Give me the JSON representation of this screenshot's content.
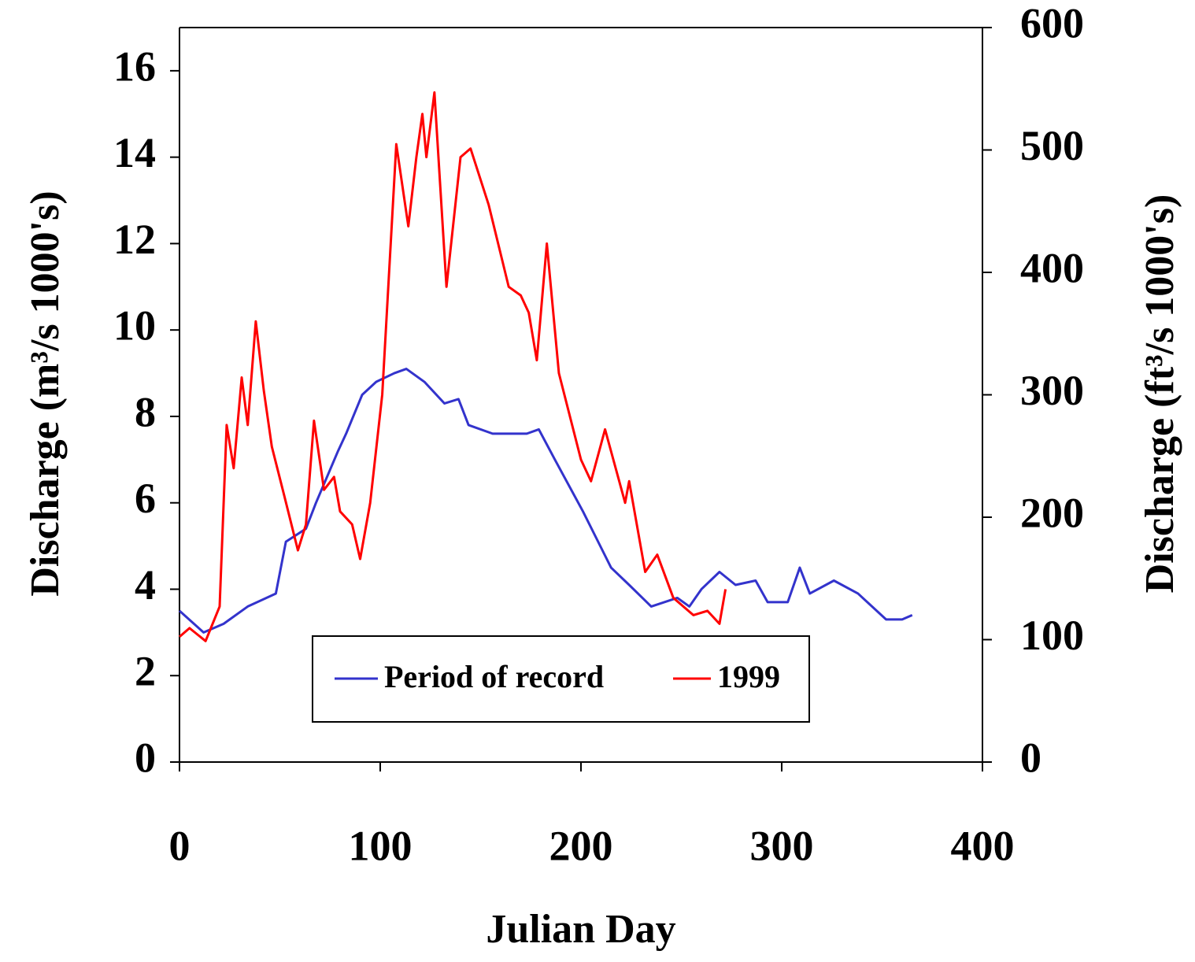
{
  "chart_data": {
    "type": "line",
    "xlabel": "Julian Day",
    "ylabel": "Discharge (m³/s 1000's)",
    "y2label": "Discharge (ft³/s 1000's)",
    "xlim": [
      0,
      400
    ],
    "xticks": [
      0,
      100,
      200,
      300,
      400
    ],
    "ylim": [
      0,
      17
    ],
    "yticks": [
      0,
      2,
      4,
      6,
      8,
      10,
      12,
      14,
      16
    ],
    "y2lim": [
      0,
      600
    ],
    "y2ticks": [
      0,
      100,
      200,
      300,
      400,
      500,
      600
    ],
    "legend": "lower center",
    "series": [
      {
        "name": "Period of record",
        "color": "#3333cc",
        "x": [
          0,
          12,
          22,
          34,
          48,
          53,
          63,
          68,
          79,
          83,
          91,
          98,
          107,
          113,
          122,
          132,
          139,
          144,
          156,
          173,
          179,
          187,
          201,
          215,
          224,
          235,
          248,
          254,
          260,
          269,
          277,
          287,
          293,
          303,
          309,
          314,
          326,
          338,
          352,
          360,
          365
        ],
        "values": [
          3.5,
          3.0,
          3.2,
          3.6,
          3.9,
          5.1,
          5.4,
          6.0,
          7.2,
          7.6,
          8.5,
          8.8,
          9.0,
          9.1,
          8.8,
          8.3,
          8.4,
          7.8,
          7.6,
          7.6,
          7.7,
          7.0,
          5.8,
          4.5,
          4.1,
          3.6,
          3.8,
          3.6,
          4.0,
          4.4,
          4.1,
          4.2,
          3.7,
          3.7,
          4.5,
          3.9,
          4.2,
          3.9,
          3.3,
          3.3,
          3.4
        ]
      },
      {
        "name": "1999",
        "color": "#ff0000",
        "x": [
          0,
          5,
          13,
          20,
          23.5,
          27,
          31,
          34,
          38,
          42,
          46,
          52,
          59,
          63,
          67,
          72,
          77,
          80,
          86,
          90,
          95,
          101,
          108,
          114,
          118,
          121,
          123,
          127,
          133,
          140,
          145,
          154,
          164,
          170,
          174,
          178,
          183,
          189,
          200,
          205,
          212,
          222,
          224,
          232,
          238,
          246,
          256,
          263,
          269,
          272
        ],
        "values": [
          2.9,
          3.1,
          2.8,
          3.6,
          7.8,
          6.8,
          8.9,
          7.8,
          10.2,
          8.6,
          7.3,
          6.2,
          4.9,
          5.5,
          7.9,
          6.3,
          6.6,
          5.8,
          5.5,
          4.7,
          6.0,
          8.5,
          14.3,
          12.4,
          14.0,
          15.0,
          14.0,
          15.5,
          11.0,
          14.0,
          14.2,
          12.9,
          11.0,
          10.8,
          10.4,
          9.3,
          12.0,
          9.0,
          7.0,
          6.5,
          7.7,
          6.0,
          6.5,
          4.4,
          4.8,
          3.8,
          3.4,
          3.5,
          3.2,
          4.0
        ]
      }
    ]
  }
}
